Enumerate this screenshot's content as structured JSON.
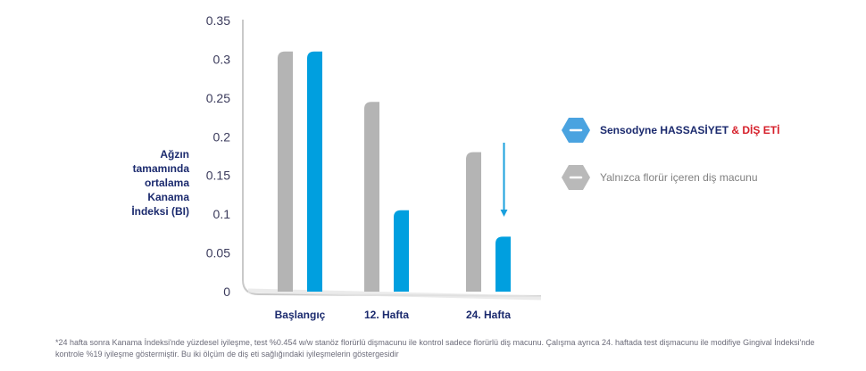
{
  "chart_data": {
    "type": "bar",
    "categories": [
      "Başlangıç",
      "12. Hafta",
      "24. Hafta"
    ],
    "series": [
      {
        "name": "Yalnızca florür içeren diş macunu",
        "color": "#b4b4b4",
        "values": [
          0.31,
          0.245,
          0.18
        ]
      },
      {
        "name": "Sensodyne HASSASİYET & DİŞ ETİ",
        "color": "#009fdf",
        "values": [
          0.31,
          0.105,
          0.071
        ]
      }
    ],
    "ylim": [
      0,
      0.35
    ],
    "yticks": [
      "0",
      "0.05",
      "0.1",
      "0.15",
      "0.2",
      "0.25",
      "0.3",
      "0.35"
    ],
    "ylabel": [
      "Ağzın",
      "tamamında",
      "ortalama",
      "Kanama",
      "İndeksi (BI)"
    ],
    "arrow_category": "24. Hafta",
    "grid": false,
    "legend_position": "right"
  },
  "legend": {
    "item1": {
      "name": "Sensodyne HASSASİYET",
      "accent": "& DİŞ ETİ",
      "color": "#4aa3e0"
    },
    "item2": {
      "name": "Yalnızca florür içeren diş macunu",
      "color": "#b9b9b9"
    }
  },
  "footnote": {
    "line1": "*24 hafta sonra Kanama İndeksi'nde yüzdesel iyileşme, test %0.454 w/w stanöz florürlü dişmacunu ile kontrol sadece florürlü diş macunu. Çalışma ayrıca 24. haftada test dişmacunu ile modifiye Gingival İndeksi'nde",
    "line2": "kontrole %19 iyileşme göstermiştir. Bu iki ölçüm de diş eti sağlığındaki iyileşmelerin göstergesidir"
  }
}
